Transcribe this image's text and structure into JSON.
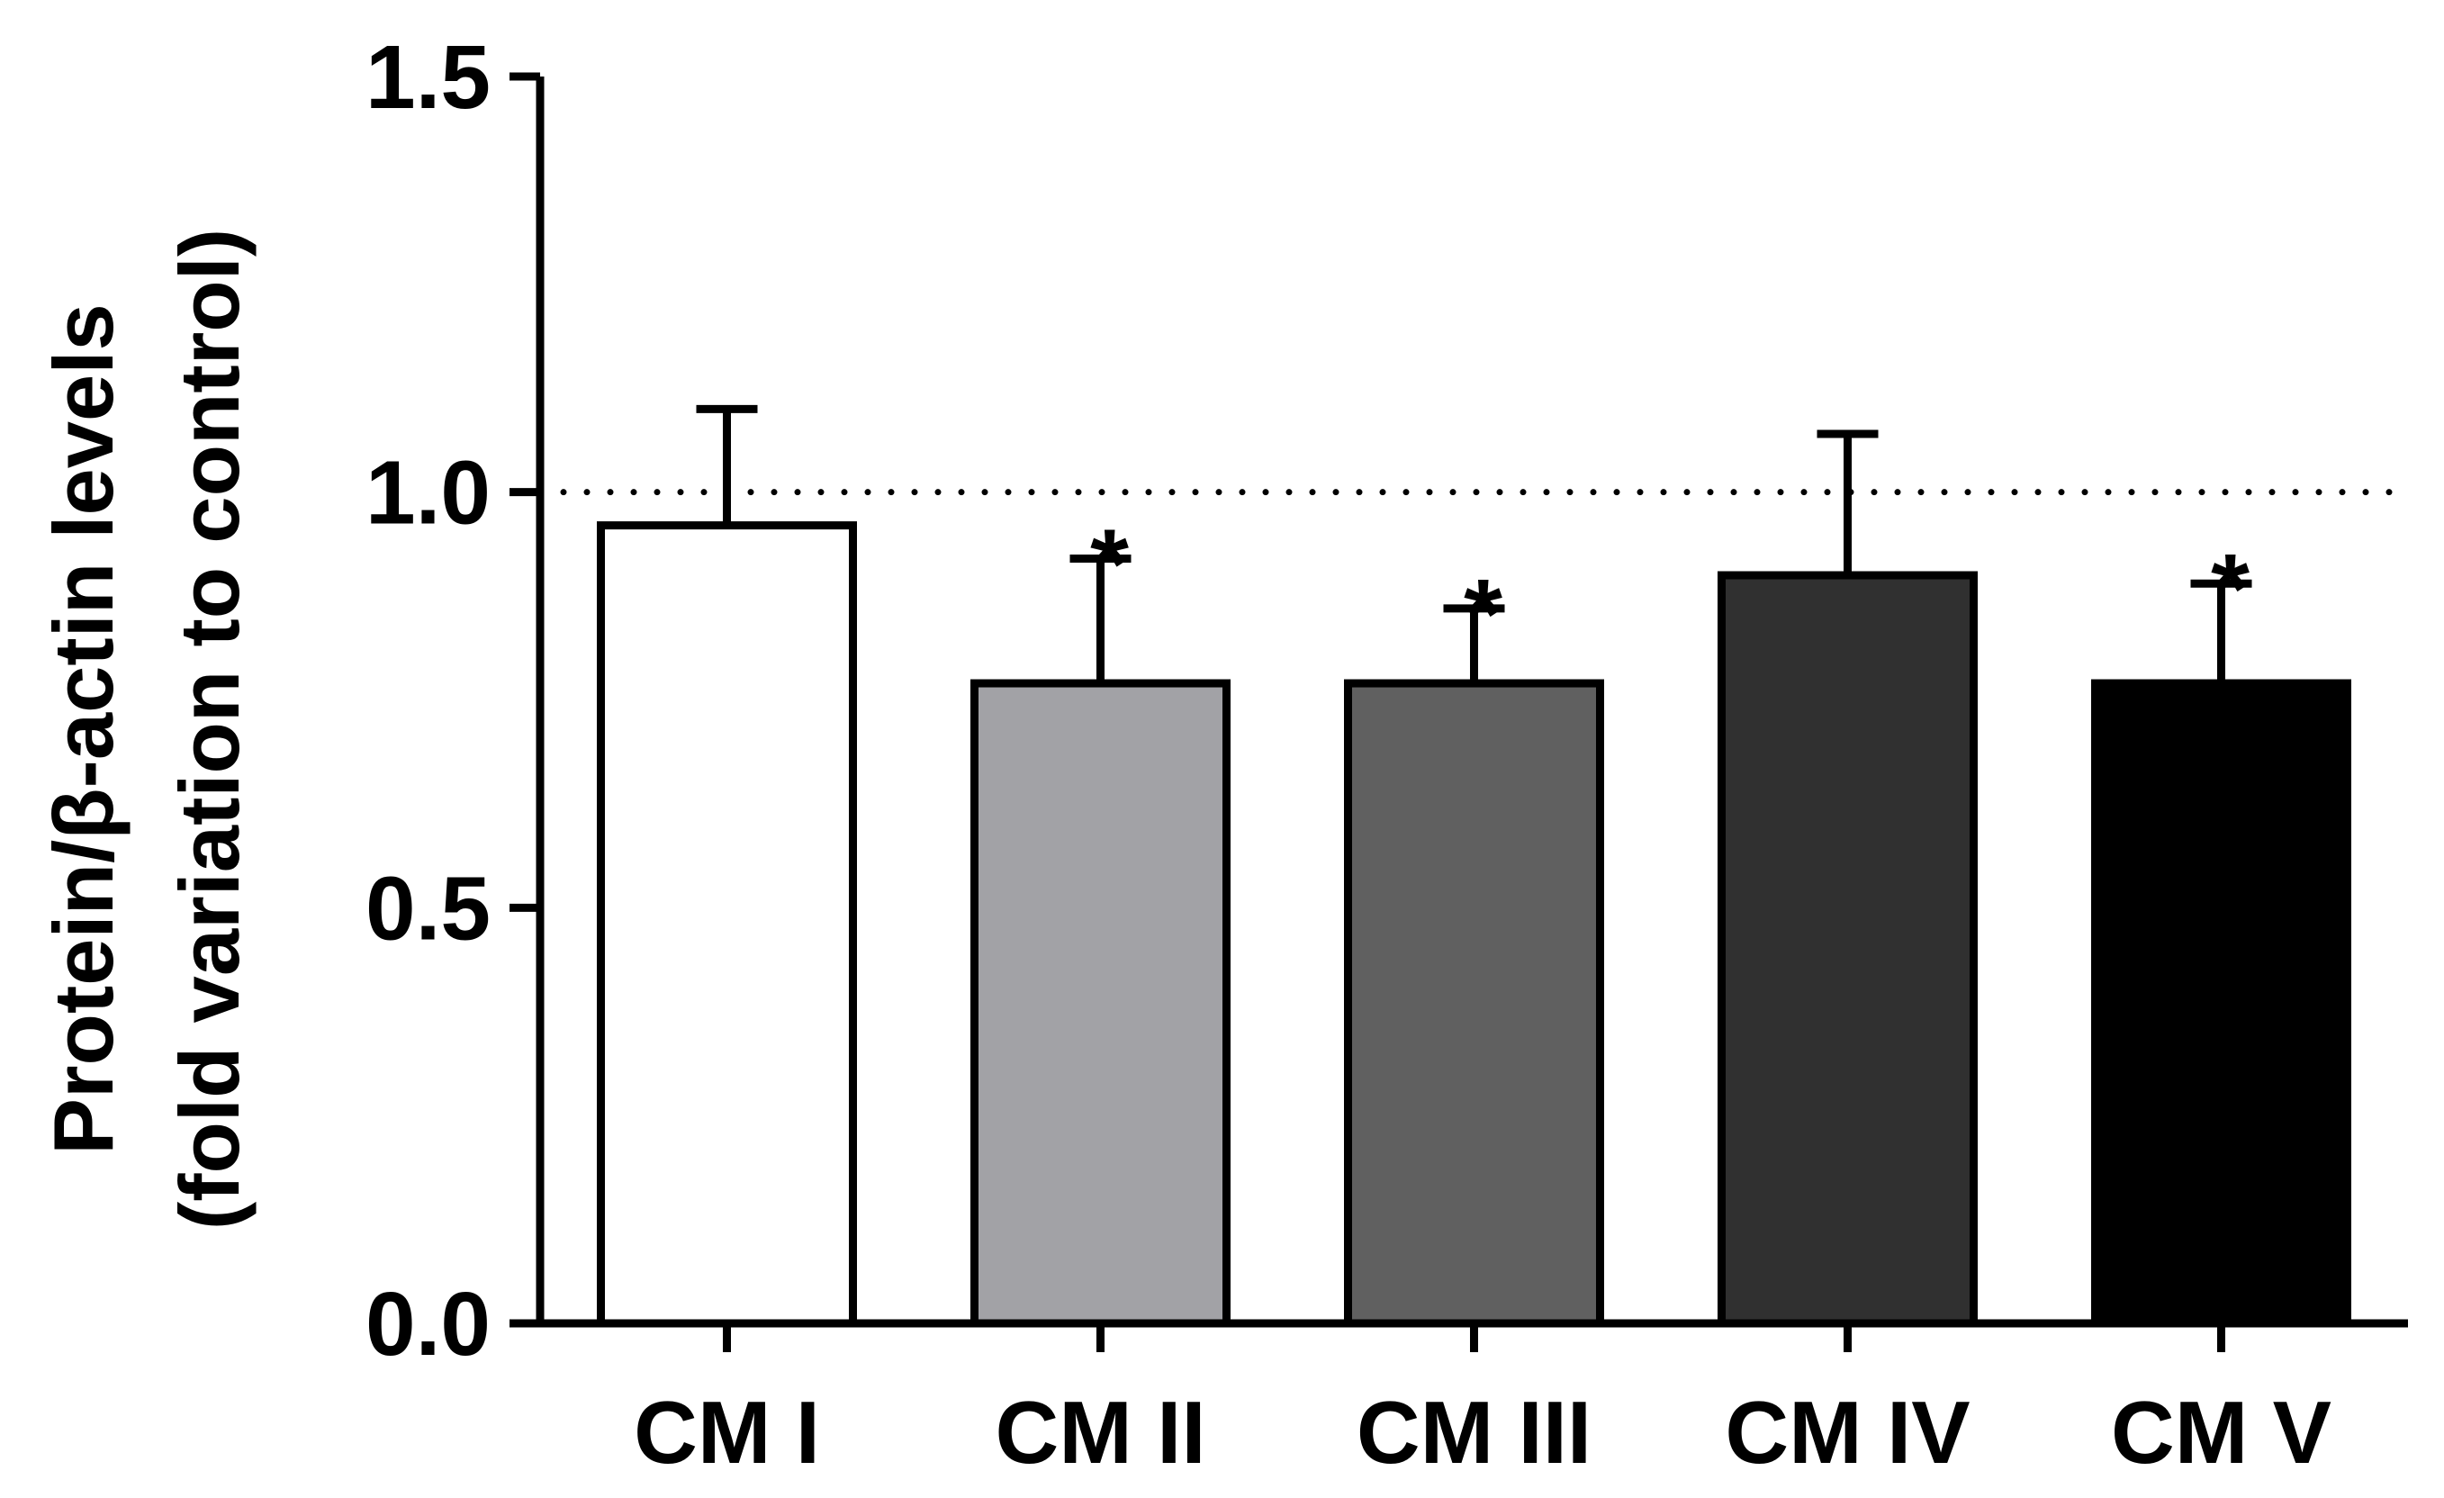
{
  "chart_data": {
    "type": "bar",
    "ylabel_line1": "Protein/β-actin levels",
    "ylabel_line2": "(fold variation to control)",
    "ylim": [
      0,
      1.5
    ],
    "yticks": [
      "0.0",
      "0.5",
      "1.0",
      "1.5"
    ],
    "reference_line": 1.0,
    "categories": [
      "CM I",
      "CM II",
      "CM III",
      "CM IV",
      "CM V"
    ],
    "values": [
      0.96,
      0.77,
      0.77,
      0.9,
      0.77
    ],
    "error_upper": [
      1.1,
      0.92,
      0.86,
      1.07,
      0.89
    ],
    "significance": [
      "",
      "*",
      "*",
      "",
      "*"
    ],
    "colors": [
      "#ffffff",
      "#a2a2a6",
      "#606060",
      "#303030",
      "#000000"
    ]
  }
}
